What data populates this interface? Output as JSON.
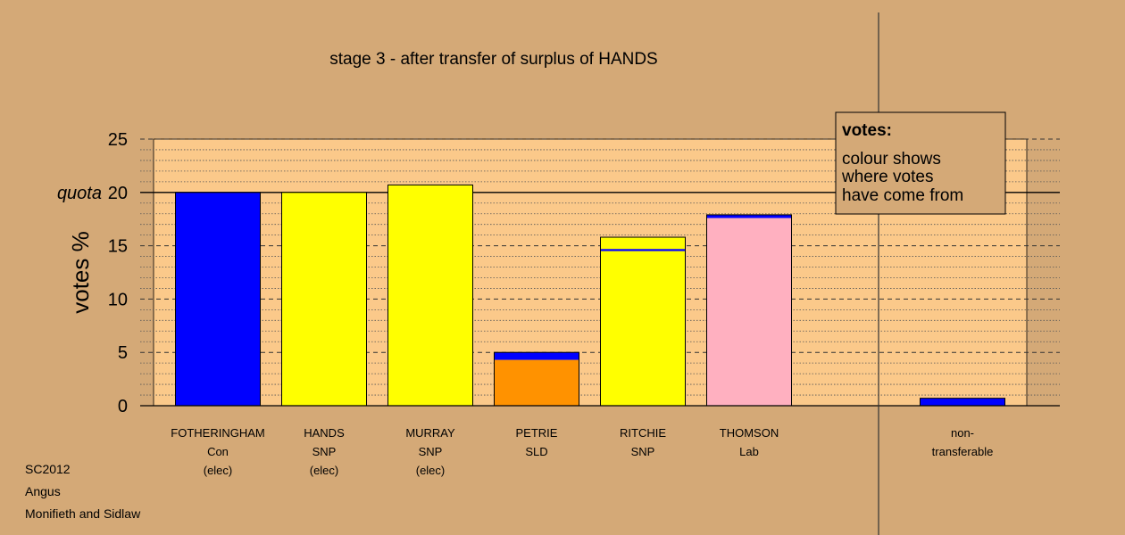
{
  "chart_data": {
    "type": "bar",
    "title": "stage 3 - after transfer of surplus of HANDS",
    "ylabel": "votes %",
    "ylim": [
      0,
      25
    ],
    "yticks": [
      0,
      5,
      10,
      15,
      20,
      25
    ],
    "quota": {
      "value": 20,
      "label": "quota"
    },
    "grid": true,
    "categories": [
      {
        "name": "FOTHERINGHAM",
        "party": "Con",
        "status": "(elec)"
      },
      {
        "name": "HANDS",
        "party": "SNP",
        "status": "(elec)"
      },
      {
        "name": "MURRAY",
        "party": "SNP",
        "status": "(elec)"
      },
      {
        "name": "PETRIE",
        "party": "SLD",
        "status": ""
      },
      {
        "name": "RITCHIE",
        "party": "SNP",
        "status": ""
      },
      {
        "name": "THOMSON",
        "party": "Lab",
        "status": ""
      },
      {
        "name": "non-",
        "party": "transferable",
        "status": ""
      }
    ],
    "bars": [
      {
        "segments": [
          {
            "value": 20.0,
            "color": "#0000ff"
          }
        ]
      },
      {
        "segments": [
          {
            "value": 20.0,
            "color": "#ffff00"
          }
        ]
      },
      {
        "segments": [
          {
            "value": 20.7,
            "color": "#ffff00"
          }
        ]
      },
      {
        "segments": [
          {
            "value": 4.3,
            "color": "#ff9200"
          },
          {
            "value": 0.7,
            "color": "#0000ff"
          }
        ]
      },
      {
        "segments": [
          {
            "value": 14.5,
            "color": "#ffff00"
          },
          {
            "value": 0.2,
            "color": "#0000ff"
          },
          {
            "value": 1.1,
            "color": "#ffff00"
          }
        ]
      },
      {
        "segments": [
          {
            "value": 17.6,
            "color": "#ffb0c0"
          },
          {
            "value": 0.3,
            "color": "#0000ff"
          }
        ]
      },
      {
        "segments": [
          {
            "value": 0.7,
            "color": "#0000ff"
          }
        ]
      }
    ],
    "legend": {
      "placement": "top-right",
      "title": "votes:",
      "lines": [
        "colour shows",
        "where votes",
        "have come from"
      ]
    }
  },
  "footer": {
    "lines": [
      "SC2012",
      "Angus",
      "Monifieth and Sidlaw"
    ]
  },
  "colors": {
    "background": "#d4a977",
    "plot_background": "#fbc98a",
    "legend_background": "#d4a977"
  }
}
